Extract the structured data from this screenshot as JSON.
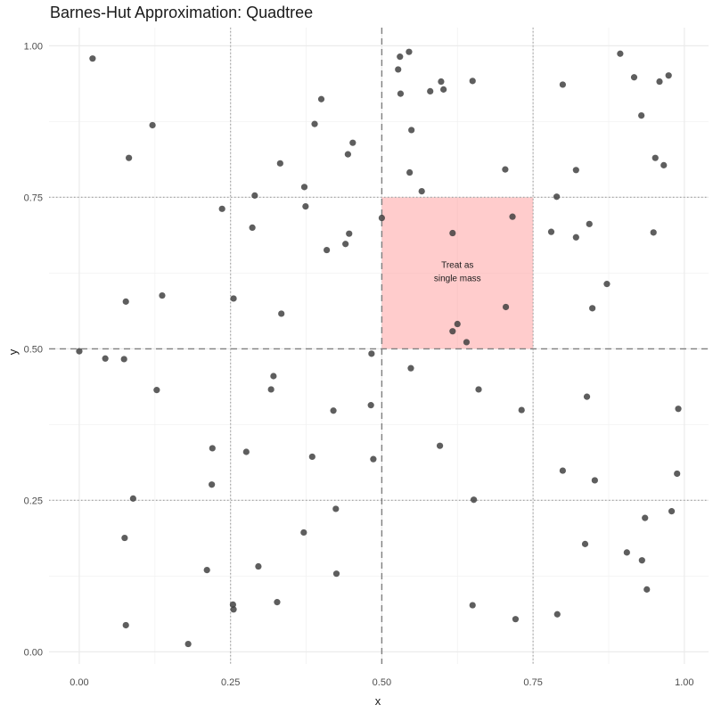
{
  "chart_data": {
    "type": "scatter",
    "title": "Barnes-Hut Approximation: Quadtree",
    "xlabel": "x",
    "ylabel": "y",
    "xlim": [
      -0.05,
      1.04
    ],
    "ylim": [
      -0.02,
      1.03
    ],
    "x_ticks": [
      0,
      0.25,
      0.5,
      0.75,
      1
    ],
    "x_tick_labels": [
      "0.00",
      "0.25",
      "0.50",
      "0.75",
      "1.00"
    ],
    "y_ticks": [
      0,
      0.25,
      0.5,
      0.75,
      1
    ],
    "y_tick_labels": [
      "0.00",
      "0.25",
      "0.50",
      "0.75",
      "1.00"
    ],
    "grid": true,
    "point_color": "#3a3a3a",
    "highlight_color": "#ff9a9a",
    "divider_color": "#7f7f7f",
    "highlight_region": {
      "x": [
        0.5,
        0.75
      ],
      "y": [
        0.5,
        0.75
      ]
    },
    "primary_dividers": {
      "x": 0.5,
      "y": 0.5
    },
    "secondary_dividers": {
      "x": [
        0.25,
        0.75
      ],
      "y": [
        0.25,
        0.75
      ]
    },
    "annotation": {
      "line1": "Treat as",
      "line2": "single mass",
      "x": 0.625,
      "y": 0.625
    },
    "points": [
      {
        "x": 0.022,
        "y": 0.979
      },
      {
        "x": 0.121,
        "y": 0.869
      },
      {
        "x": 0.082,
        "y": 0.815
      },
      {
        "x": 0.4,
        "y": 0.912
      },
      {
        "x": 0.389,
        "y": 0.871
      },
      {
        "x": 0.332,
        "y": 0.806
      },
      {
        "x": 0.452,
        "y": 0.84
      },
      {
        "x": 0.444,
        "y": 0.821
      },
      {
        "x": 0.372,
        "y": 0.767
      },
      {
        "x": 0.29,
        "y": 0.753
      },
      {
        "x": 0.236,
        "y": 0.731
      },
      {
        "x": 0.374,
        "y": 0.735
      },
      {
        "x": 0.286,
        "y": 0.7
      },
      {
        "x": 0.446,
        "y": 0.69
      },
      {
        "x": 0.44,
        "y": 0.673
      },
      {
        "x": 0.409,
        "y": 0.663
      },
      {
        "x": 0.5,
        "y": 0.716
      },
      {
        "x": 0.545,
        "y": 0.99
      },
      {
        "x": 0.53,
        "y": 0.982
      },
      {
        "x": 0.527,
        "y": 0.961
      },
      {
        "x": 0.598,
        "y": 0.941
      },
      {
        "x": 0.602,
        "y": 0.928
      },
      {
        "x": 0.65,
        "y": 0.942
      },
      {
        "x": 0.531,
        "y": 0.921
      },
      {
        "x": 0.58,
        "y": 0.925
      },
      {
        "x": 0.549,
        "y": 0.861
      },
      {
        "x": 0.546,
        "y": 0.791
      },
      {
        "x": 0.566,
        "y": 0.76
      },
      {
        "x": 0.704,
        "y": 0.796
      },
      {
        "x": 0.799,
        "y": 0.936
      },
      {
        "x": 0.894,
        "y": 0.987
      },
      {
        "x": 0.917,
        "y": 0.948
      },
      {
        "x": 0.959,
        "y": 0.941
      },
      {
        "x": 0.974,
        "y": 0.951
      },
      {
        "x": 0.929,
        "y": 0.885
      },
      {
        "x": 0.821,
        "y": 0.795
      },
      {
        "x": 0.952,
        "y": 0.815
      },
      {
        "x": 0.966,
        "y": 0.803
      },
      {
        "x": 0.789,
        "y": 0.751
      },
      {
        "x": 0.843,
        "y": 0.706
      },
      {
        "x": 0.78,
        "y": 0.693
      },
      {
        "x": 0.821,
        "y": 0.684
      },
      {
        "x": 0.949,
        "y": 0.692
      },
      {
        "x": 0.872,
        "y": 0.607
      },
      {
        "x": 0.848,
        "y": 0.567
      },
      {
        "x": 0.617,
        "y": 0.691
      },
      {
        "x": 0.716,
        "y": 0.718
      },
      {
        "x": 0.705,
        "y": 0.569
      },
      {
        "x": 0.625,
        "y": 0.541
      },
      {
        "x": 0.617,
        "y": 0.529
      },
      {
        "x": 0.64,
        "y": 0.511
      },
      {
        "x": 0.0,
        "y": 0.496
      },
      {
        "x": 0.043,
        "y": 0.484
      },
      {
        "x": 0.074,
        "y": 0.483
      },
      {
        "x": 0.077,
        "y": 0.578
      },
      {
        "x": 0.137,
        "y": 0.588
      },
      {
        "x": 0.255,
        "y": 0.583
      },
      {
        "x": 0.334,
        "y": 0.558
      },
      {
        "x": 0.128,
        "y": 0.432
      },
      {
        "x": 0.321,
        "y": 0.455
      },
      {
        "x": 0.317,
        "y": 0.433
      },
      {
        "x": 0.42,
        "y": 0.398
      },
      {
        "x": 0.483,
        "y": 0.492
      },
      {
        "x": 0.548,
        "y": 0.468
      },
      {
        "x": 0.66,
        "y": 0.433
      },
      {
        "x": 0.731,
        "y": 0.399
      },
      {
        "x": 0.839,
        "y": 0.421
      },
      {
        "x": 0.99,
        "y": 0.401
      },
      {
        "x": 0.482,
        "y": 0.407
      },
      {
        "x": 0.22,
        "y": 0.336
      },
      {
        "x": 0.276,
        "y": 0.33
      },
      {
        "x": 0.385,
        "y": 0.322
      },
      {
        "x": 0.486,
        "y": 0.318
      },
      {
        "x": 0.596,
        "y": 0.34
      },
      {
        "x": 0.799,
        "y": 0.299
      },
      {
        "x": 0.852,
        "y": 0.283
      },
      {
        "x": 0.988,
        "y": 0.294
      },
      {
        "x": 0.219,
        "y": 0.276
      },
      {
        "x": 0.089,
        "y": 0.253
      },
      {
        "x": 0.652,
        "y": 0.251
      },
      {
        "x": 0.424,
        "y": 0.236
      },
      {
        "x": 0.979,
        "y": 0.232
      },
      {
        "x": 0.935,
        "y": 0.221
      },
      {
        "x": 0.075,
        "y": 0.188
      },
      {
        "x": 0.371,
        "y": 0.197
      },
      {
        "x": 0.836,
        "y": 0.178
      },
      {
        "x": 0.905,
        "y": 0.164
      },
      {
        "x": 0.93,
        "y": 0.151
      },
      {
        "x": 0.296,
        "y": 0.141
      },
      {
        "x": 0.211,
        "y": 0.135
      },
      {
        "x": 0.425,
        "y": 0.129
      },
      {
        "x": 0.938,
        "y": 0.103
      },
      {
        "x": 0.327,
        "y": 0.082
      },
      {
        "x": 0.254,
        "y": 0.078
      },
      {
        "x": 0.255,
        "y": 0.07
      },
      {
        "x": 0.65,
        "y": 0.077
      },
      {
        "x": 0.79,
        "y": 0.062
      },
      {
        "x": 0.721,
        "y": 0.054
      },
      {
        "x": 0.077,
        "y": 0.044
      },
      {
        "x": 0.18,
        "y": 0.013
      }
    ]
  }
}
